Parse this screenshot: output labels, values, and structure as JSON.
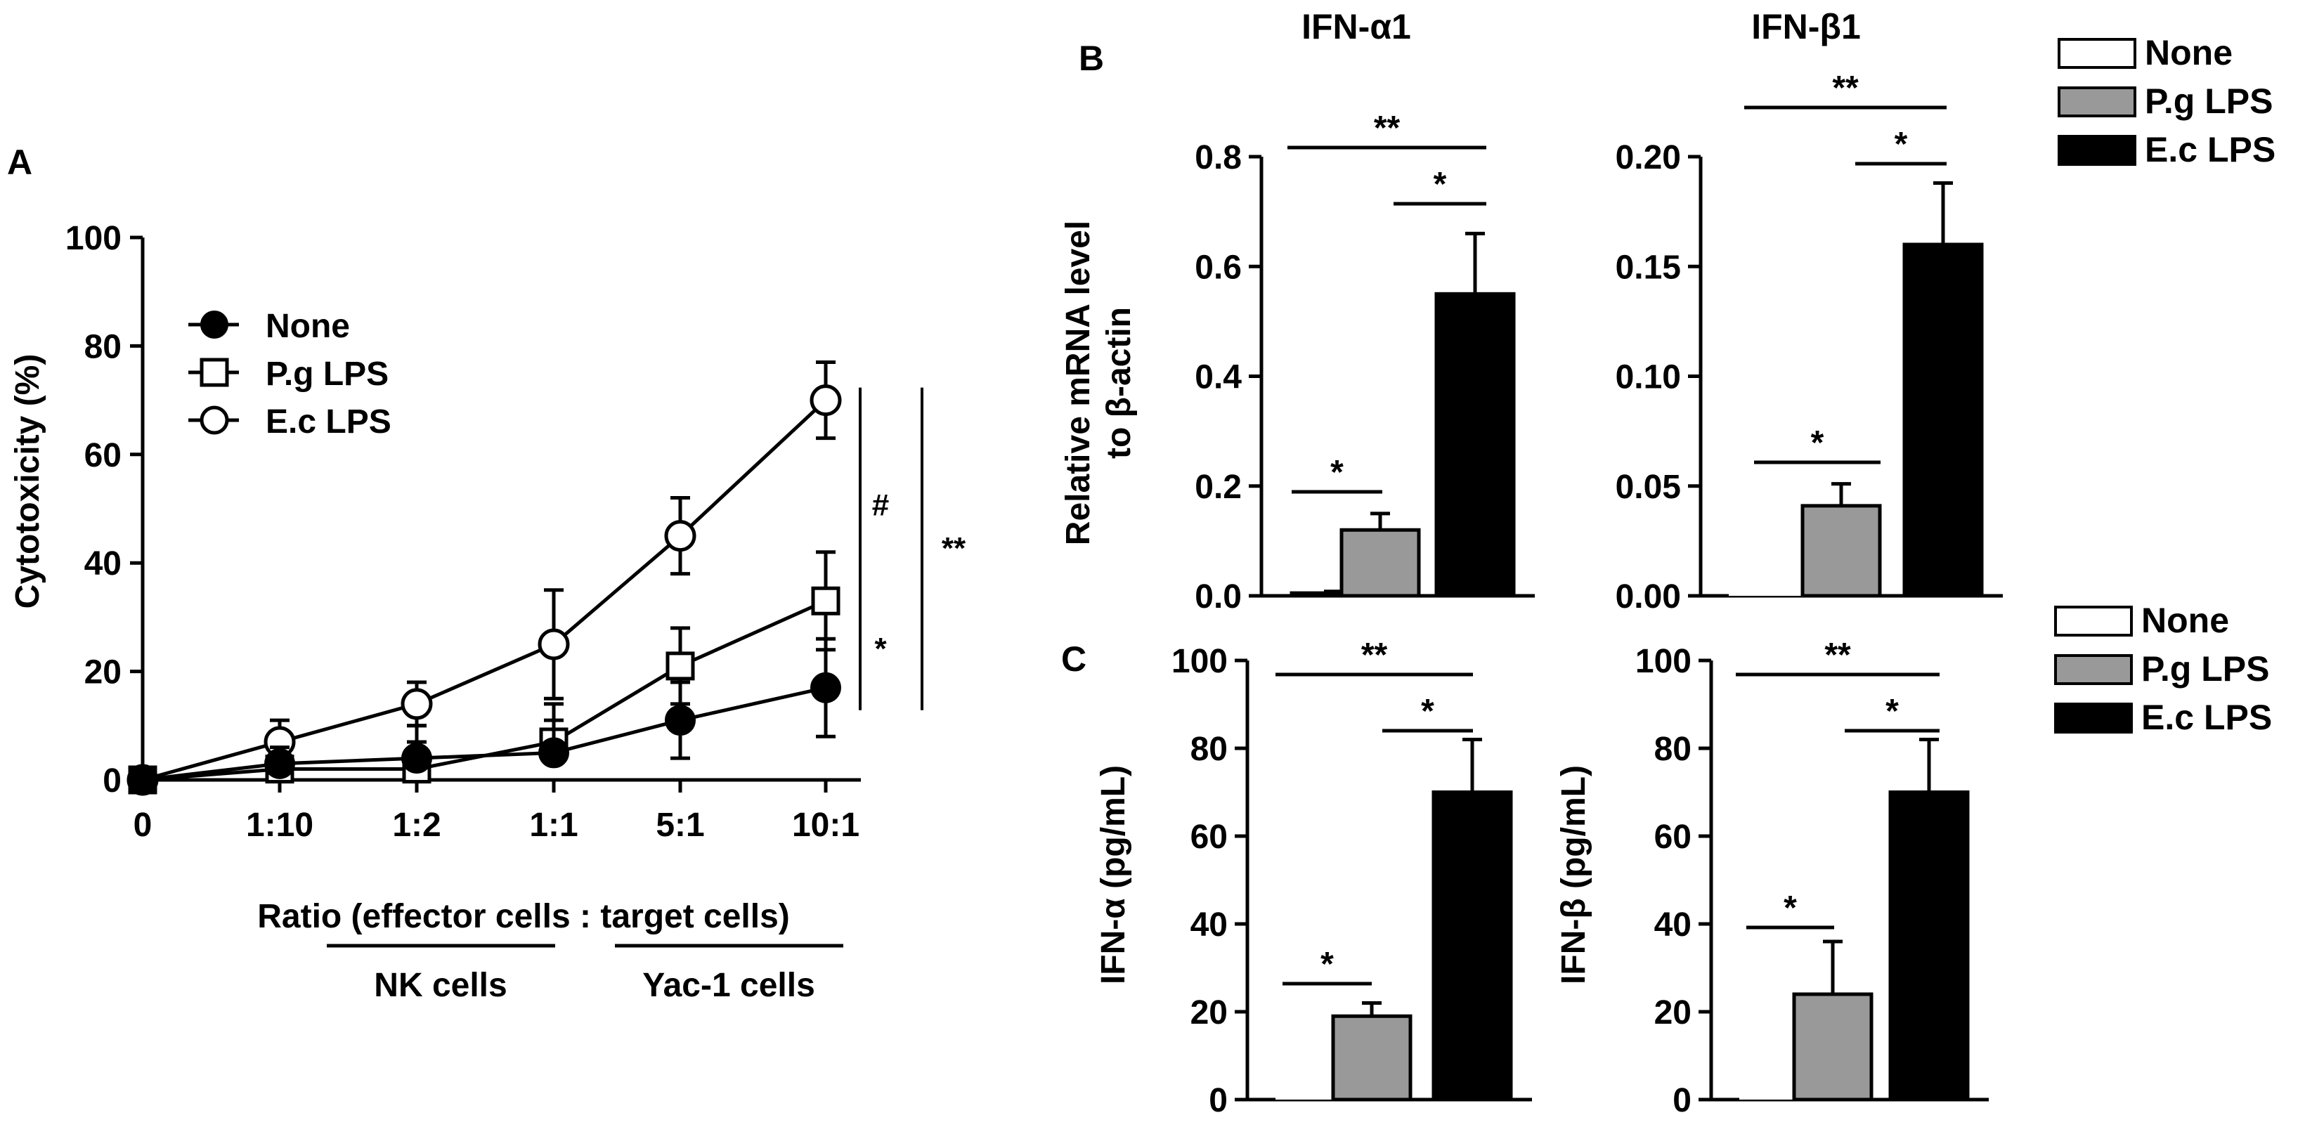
{
  "colors": {
    "none": "#ffffff",
    "pg": "#999999",
    "ec": "#000000",
    "axis": "#000000"
  },
  "chart_data": [
    {
      "id": "A",
      "type": "line",
      "panel_label": "A",
      "ylabel": "Cytotoxicity (%)",
      "xlabel": "Ratio (effector cells : target cells)",
      "sublabels": [
        "NK cells",
        "Yac-1 cells"
      ],
      "categories": [
        "0",
        "1:10",
        "1:2",
        "1:1",
        "5:1",
        "10:1"
      ],
      "yticks": [
        "0",
        "20",
        "40",
        "60",
        "80",
        "100"
      ],
      "ylim": [
        0,
        100
      ],
      "legend": [
        "None",
        "P.g LPS",
        "E.c LPS"
      ],
      "series": [
        {
          "name": "None",
          "marker": "filled-circle",
          "values": [
            0,
            3,
            4,
            5,
            11,
            17
          ],
          "errors": [
            0,
            3,
            6,
            6,
            7,
            9
          ]
        },
        {
          "name": "P.g LPS",
          "marker": "open-square",
          "values": [
            0,
            2,
            2,
            7,
            21,
            33
          ],
          "errors": [
            0,
            3,
            5,
            7,
            7,
            9
          ]
        },
        {
          "name": "E.c LPS",
          "marker": "open-circle",
          "values": [
            0,
            7,
            14,
            25,
            45,
            70
          ],
          "errors": [
            0,
            4,
            4,
            10,
            7,
            7
          ]
        }
      ],
      "significance": [
        {
          "between": [
            "E.c LPS",
            "P.g LPS"
          ],
          "mark": "#"
        },
        {
          "between": [
            "P.g LPS",
            "None"
          ],
          "mark": "*"
        },
        {
          "between": [
            "E.c LPS",
            "None"
          ],
          "mark": "**"
        }
      ]
    },
    {
      "id": "B1",
      "type": "bar",
      "panel_label": "B",
      "title": "IFN-α1",
      "ylabel_lines": [
        "Relative mRNA level",
        "to β-actin"
      ],
      "categories": [
        "None",
        "P.g LPS",
        "E.c LPS"
      ],
      "values": [
        0.005,
        0.12,
        0.55
      ],
      "errors": [
        0.003,
        0.03,
        0.11
      ],
      "ylim": [
        0,
        0.8
      ],
      "yticks": [
        "0.0",
        "0.2",
        "0.4",
        "0.6",
        "0.8"
      ],
      "significance": [
        {
          "pair": [
            0,
            1
          ],
          "mark": "*"
        },
        {
          "pair": [
            1,
            2
          ],
          "mark": "*"
        },
        {
          "pair": [
            0,
            2
          ],
          "mark": "**"
        }
      ]
    },
    {
      "id": "B2",
      "type": "bar",
      "title": "IFN-β1",
      "categories": [
        "None",
        "P.g LPS",
        "E.c LPS"
      ],
      "values": [
        0,
        0.041,
        0.16
      ],
      "errors": [
        0,
        0.01,
        0.028
      ],
      "ylim": [
        0,
        0.2
      ],
      "yticks": [
        "0.00",
        "0.05",
        "0.10",
        "0.15",
        "0.20"
      ],
      "significance": [
        {
          "pair": [
            0,
            1
          ],
          "mark": "*"
        },
        {
          "pair": [
            1,
            2
          ],
          "mark": "*"
        },
        {
          "pair": [
            0,
            2
          ],
          "mark": "**"
        }
      ]
    },
    {
      "id": "C1",
      "type": "bar",
      "panel_label": "C",
      "ylabel": "IFN-α  (pg/mL)",
      "categories": [
        "None",
        "P.g LPS",
        "E.c LPS"
      ],
      "values": [
        0,
        19,
        70
      ],
      "errors": [
        0,
        3,
        12
      ],
      "ylim": [
        0,
        100
      ],
      "yticks": [
        "0",
        "20",
        "40",
        "60",
        "80",
        "100"
      ],
      "significance": [
        {
          "pair": [
            0,
            1
          ],
          "mark": "*"
        },
        {
          "pair": [
            1,
            2
          ],
          "mark": "*"
        },
        {
          "pair": [
            0,
            2
          ],
          "mark": "**"
        }
      ]
    },
    {
      "id": "C2",
      "type": "bar",
      "ylabel": "IFN-β  (pg/mL)",
      "categories": [
        "None",
        "P.g LPS",
        "E.c LPS"
      ],
      "values": [
        0,
        24,
        70
      ],
      "errors": [
        0,
        12,
        12
      ],
      "ylim": [
        0,
        100
      ],
      "yticks": [
        "0",
        "20",
        "40",
        "60",
        "80",
        "100"
      ],
      "significance": [
        {
          "pair": [
            0,
            1
          ],
          "mark": "*"
        },
        {
          "pair": [
            1,
            2
          ],
          "mark": "*"
        },
        {
          "pair": [
            0,
            2
          ],
          "mark": "**"
        }
      ]
    }
  ],
  "bar_legends": [
    {
      "id": "B",
      "entries": [
        "None",
        "P.g LPS",
        "E.c LPS"
      ]
    },
    {
      "id": "C",
      "entries": [
        "None",
        "P.g LPS",
        "E.c LPS"
      ]
    }
  ]
}
